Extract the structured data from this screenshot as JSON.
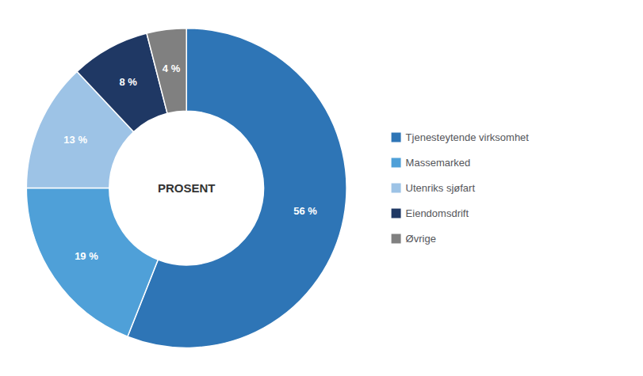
{
  "chart_data": {
    "type": "pie",
    "categories": [
      "Tjenesteytende virksomhet",
      "Massemarked",
      "Utenriks sjøfart",
      "Eiendomsdrift",
      "Øvrige"
    ],
    "values": [
      56,
      19,
      13,
      8,
      4
    ],
    "value_labels": [
      "56 %",
      "19 %",
      "13 %",
      "8 %",
      "4 %"
    ],
    "colors": [
      "#2E75B6",
      "#4FA0D8",
      "#9DC3E6",
      "#1F3864",
      "#808080"
    ],
    "annotations": [
      "PROSENT"
    ],
    "data_labels": true,
    "legend": "right"
  }
}
